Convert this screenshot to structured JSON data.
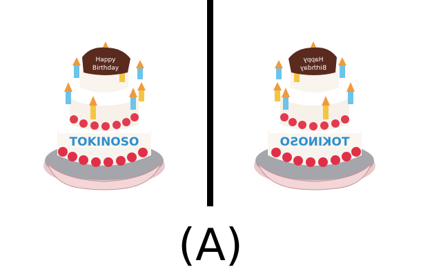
{
  "label": "(A)",
  "left_cake": {
    "topper_line1": "Happy",
    "topper_line2": "Birthday",
    "band_text": "TOKINOSO"
  },
  "right_cake": {
    "topper_line1": "Happy",
    "topper_line2": "Birthday",
    "band_text": "TOKINOSO"
  }
}
